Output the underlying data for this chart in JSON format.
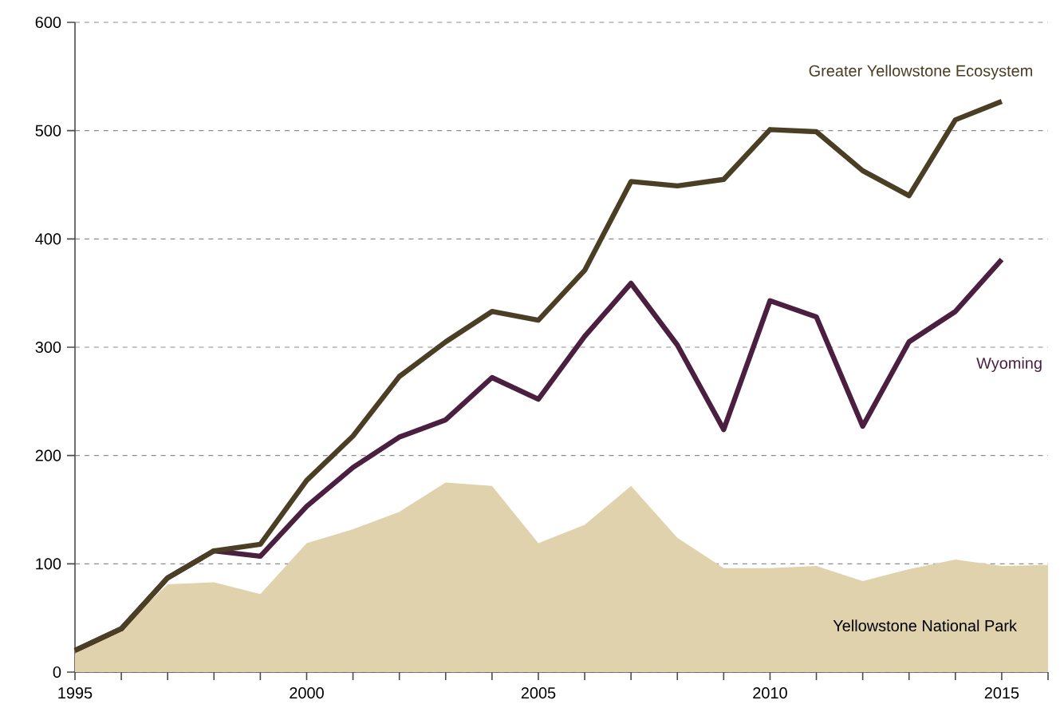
{
  "chart_data": {
    "type": "line",
    "x": [
      1995,
      1996,
      1997,
      1998,
      1999,
      2000,
      2001,
      2002,
      2003,
      2004,
      2005,
      2006,
      2007,
      2008,
      2009,
      2010,
      2011,
      2012,
      2013,
      2014,
      2015,
      2016
    ],
    "series": [
      {
        "name": "Yellowstone National Park",
        "type": "area",
        "color": "#e0d2ad",
        "values": [
          17,
          40,
          81,
          83,
          72,
          119,
          132,
          148,
          175,
          172,
          119,
          136,
          172,
          124,
          96,
          96,
          98,
          84,
          95,
          104,
          98,
          99
        ]
      },
      {
        "name": "Wyoming",
        "color": "#4a1f3f",
        "values": [
          20,
          40,
          87,
          112,
          107,
          153,
          189,
          217,
          233,
          272,
          252,
          310,
          359,
          302,
          224,
          343,
          328,
          227,
          305,
          333,
          381,
          null
        ]
      },
      {
        "name": "Greater Yellowstone Ecosystem",
        "color": "#4a3f24",
        "values": [
          20,
          40,
          87,
          112,
          118,
          177,
          218,
          273,
          305,
          333,
          325,
          371,
          453,
          449,
          455,
          501,
          499,
          463,
          440,
          510,
          527,
          null
        ]
      }
    ],
    "xlim": [
      1995,
      2016
    ],
    "ylim": [
      0,
      600
    ],
    "xticks": [
      {
        "value": 1995,
        "label": "1995"
      },
      {
        "value": 1996,
        "label": null
      },
      {
        "value": 1997,
        "label": null
      },
      {
        "value": 1998,
        "label": null
      },
      {
        "value": 1999,
        "label": null
      },
      {
        "value": 2000,
        "label": "2000"
      },
      {
        "value": 2001,
        "label": null
      },
      {
        "value": 2002,
        "label": null
      },
      {
        "value": 2003,
        "label": null
      },
      {
        "value": 2004,
        "label": null
      },
      {
        "value": 2005,
        "label": "2005"
      },
      {
        "value": 2006,
        "label": null
      },
      {
        "value": 2007,
        "label": null
      },
      {
        "value": 2008,
        "label": null
      },
      {
        "value": 2009,
        "label": null
      },
      {
        "value": 2010,
        "label": "2010"
      },
      {
        "value": 2011,
        "label": null
      },
      {
        "value": 2012,
        "label": null
      },
      {
        "value": 2013,
        "label": null
      },
      {
        "value": 2014,
        "label": null
      },
      {
        "value": 2015,
        "label": "2015"
      },
      {
        "value": 2016,
        "label": null
      }
    ],
    "yticks": [
      0,
      100,
      200,
      300,
      400,
      500,
      600
    ],
    "grid": "y",
    "legend": false
  }
}
